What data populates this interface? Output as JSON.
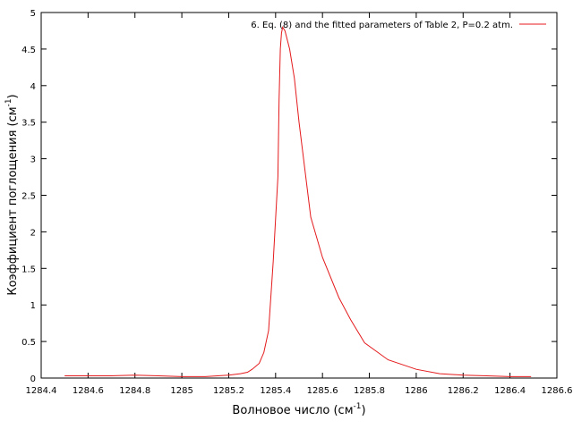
{
  "chart_data": {
    "type": "line",
    "xlabel": "Волновое число (см",
    "xlabel_sup": "-1",
    "xlabel_end": ")",
    "ylabel": "Коэффициент поглощения (см",
    "ylabel_sup": "-1",
    "ylabel_end": ")",
    "xlim": [
      1284.4,
      1286.6
    ],
    "ylim": [
      0,
      5
    ],
    "xticks": [
      "1284.4",
      "1284.6",
      "1284.8",
      "1285",
      "1285.2",
      "1285.4",
      "1285.6",
      "1285.8",
      "1286",
      "1286.2",
      "1286.4",
      "1286.6"
    ],
    "yticks": [
      "0",
      "0.5",
      "1",
      "1.5",
      "2",
      "2.5",
      "3",
      "3.5",
      "4",
      "4.5",
      "5"
    ],
    "legend_position": "top-right",
    "series": [
      {
        "name": "6. Eq. (8) and the fitted parameters of Table 2, P=0.2 atm.",
        "color": "#e41a1c",
        "x": [
          1284.5,
          1284.6,
          1284.7,
          1284.8,
          1284.9,
          1285.0,
          1285.1,
          1285.2,
          1285.25,
          1285.28,
          1285.3,
          1285.33,
          1285.35,
          1285.37,
          1285.39,
          1285.41,
          1285.415,
          1285.42,
          1285.425,
          1285.43,
          1285.44,
          1285.46,
          1285.48,
          1285.5,
          1285.55,
          1285.6,
          1285.67,
          1285.72,
          1285.78,
          1285.88,
          1286.0,
          1286.1,
          1286.2,
          1286.3,
          1286.4,
          1286.49
        ],
        "y": [
          0.03,
          0.03,
          0.03,
          0.04,
          0.03,
          0.02,
          0.02,
          0.04,
          0.06,
          0.08,
          0.12,
          0.2,
          0.35,
          0.65,
          1.6,
          2.75,
          3.8,
          4.5,
          4.72,
          4.8,
          4.75,
          4.5,
          4.1,
          3.5,
          2.2,
          1.65,
          1.1,
          0.8,
          0.48,
          0.25,
          0.12,
          0.06,
          0.04,
          0.03,
          0.02,
          0.02
        ]
      }
    ]
  }
}
